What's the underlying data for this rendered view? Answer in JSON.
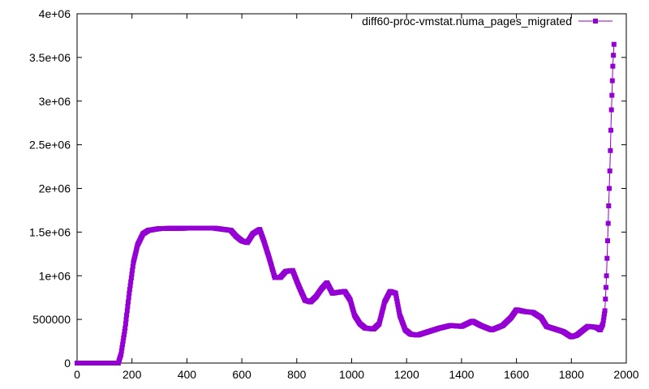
{
  "chart_data": {
    "type": "line",
    "title": "",
    "xlabel": "",
    "ylabel": "",
    "xlim": [
      0,
      2000
    ],
    "ylim": [
      0,
      4000000
    ],
    "grid": false,
    "legend_position": "top-right",
    "x_ticks": [
      "0",
      "200",
      "400",
      "600",
      "800",
      "1000",
      "1200",
      "1400",
      "1600",
      "1800",
      "2000"
    ],
    "y_ticks": [
      "0",
      "500000",
      "1e+06",
      "1.5e+06",
      "2e+06",
      "2.5e+06",
      "3e+06",
      "3.5e+06",
      "4e+06"
    ],
    "series": [
      {
        "name": "diff60-proc-vmstat.numa_pages_migrated",
        "color": "#9400d3",
        "marker": "square",
        "points": [
          [
            0,
            0
          ],
          [
            150,
            0
          ],
          [
            160,
            100000
          ],
          [
            175,
            400000
          ],
          [
            190,
            800000
          ],
          [
            205,
            1150000
          ],
          [
            220,
            1350000
          ],
          [
            240,
            1480000
          ],
          [
            260,
            1520000
          ],
          [
            300,
            1540000
          ],
          [
            400,
            1545000
          ],
          [
            500,
            1545000
          ],
          [
            560,
            1520000
          ],
          [
            580,
            1450000
          ],
          [
            600,
            1400000
          ],
          [
            620,
            1380000
          ],
          [
            640,
            1480000
          ],
          [
            665,
            1530000
          ],
          [
            680,
            1400000
          ],
          [
            700,
            1200000
          ],
          [
            720,
            980000
          ],
          [
            740,
            980000
          ],
          [
            760,
            1050000
          ],
          [
            785,
            1060000
          ],
          [
            805,
            900000
          ],
          [
            830,
            720000
          ],
          [
            850,
            700000
          ],
          [
            870,
            760000
          ],
          [
            890,
            850000
          ],
          [
            910,
            920000
          ],
          [
            930,
            800000
          ],
          [
            950,
            810000
          ],
          [
            975,
            820000
          ],
          [
            995,
            720000
          ],
          [
            1010,
            550000
          ],
          [
            1030,
            450000
          ],
          [
            1050,
            400000
          ],
          [
            1080,
            390000
          ],
          [
            1100,
            450000
          ],
          [
            1120,
            700000
          ],
          [
            1140,
            820000
          ],
          [
            1160,
            800000
          ],
          [
            1175,
            550000
          ],
          [
            1195,
            380000
          ],
          [
            1215,
            330000
          ],
          [
            1240,
            320000
          ],
          [
            1280,
            360000
          ],
          [
            1320,
            400000
          ],
          [
            1360,
            430000
          ],
          [
            1400,
            420000
          ],
          [
            1440,
            480000
          ],
          [
            1470,
            430000
          ],
          [
            1510,
            380000
          ],
          [
            1550,
            430000
          ],
          [
            1580,
            520000
          ],
          [
            1600,
            610000
          ],
          [
            1630,
            590000
          ],
          [
            1660,
            580000
          ],
          [
            1690,
            520000
          ],
          [
            1710,
            420000
          ],
          [
            1740,
            390000
          ],
          [
            1770,
            360000
          ],
          [
            1800,
            300000
          ],
          [
            1820,
            320000
          ],
          [
            1840,
            370000
          ],
          [
            1860,
            420000
          ],
          [
            1890,
            410000
          ],
          [
            1905,
            380000
          ],
          [
            1915,
            450000
          ],
          [
            1922,
            600000
          ],
          [
            1928,
            1000000
          ],
          [
            1934,
            1600000
          ],
          [
            1940,
            2200000
          ],
          [
            1946,
            2900000
          ],
          [
            1951,
            3400000
          ],
          [
            1955,
            3650000
          ]
        ]
      }
    ]
  }
}
